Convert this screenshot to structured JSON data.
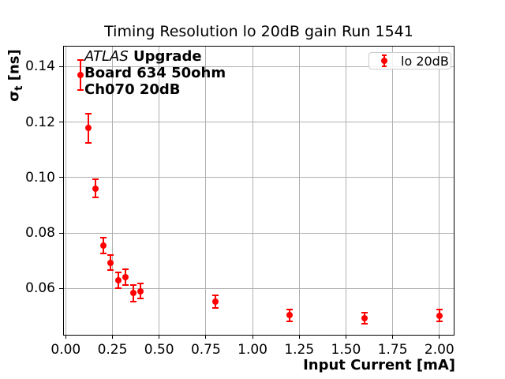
{
  "figure": {
    "title": "Timing Resolution lo 20dB gain Run 1541",
    "x_axis_label": "Input Current [mA]",
    "y_axis_label": {
      "sigma": "σ",
      "subscript": "t",
      "units": " [ns]"
    },
    "annotation": {
      "line1_italic": "ATLAS",
      "line1_bold": " Upgrade",
      "line2": "Board 634 50ohm",
      "line3": "Ch070 20dB"
    },
    "legend": {
      "label": "lo 20dB"
    }
  },
  "colors": {
    "series": "#ff0000",
    "grid": "#b0b0b0",
    "text": "#000000",
    "legend_border": "#cccccc",
    "background": "#ffffff"
  },
  "chart_data": {
    "type": "scatter",
    "title": "Timing Resolution lo 20dB gain Run 1541",
    "xlabel": "Input Current [mA]",
    "ylabel": "σt [ns]",
    "grid": true,
    "legend_position": "upper right",
    "xlim": [
      -0.014,
      2.081
    ],
    "ylim": [
      0.043,
      0.1475
    ],
    "xticks": [
      0.0,
      0.25,
      0.5,
      0.75,
      1.0,
      1.25,
      1.5,
      1.75,
      2.0
    ],
    "yticks": [
      0.06,
      0.08,
      0.1,
      0.12,
      0.14
    ],
    "series": [
      {
        "name": "lo 20dB",
        "color": "#ff0000",
        "marker": "circle-with-errorbars",
        "x": [
          0.08,
          0.12,
          0.16,
          0.2,
          0.24,
          0.28,
          0.32,
          0.36,
          0.4,
          0.8,
          1.2,
          1.6,
          2.0
        ],
        "y": [
          0.137,
          0.1178,
          0.096,
          0.0755,
          0.0693,
          0.0629,
          0.064,
          0.0583,
          0.059,
          0.0553,
          0.0503,
          0.0493,
          0.0502
        ],
        "yerr": [
          0.0055,
          0.0053,
          0.0033,
          0.0029,
          0.0027,
          0.0028,
          0.0028,
          0.003,
          0.0027,
          0.0022,
          0.0021,
          0.002,
          0.0022
        ]
      }
    ],
    "annotations": [
      "ATLAS Upgrade",
      "Board 634 50ohm",
      "Ch070 20dB"
    ]
  }
}
